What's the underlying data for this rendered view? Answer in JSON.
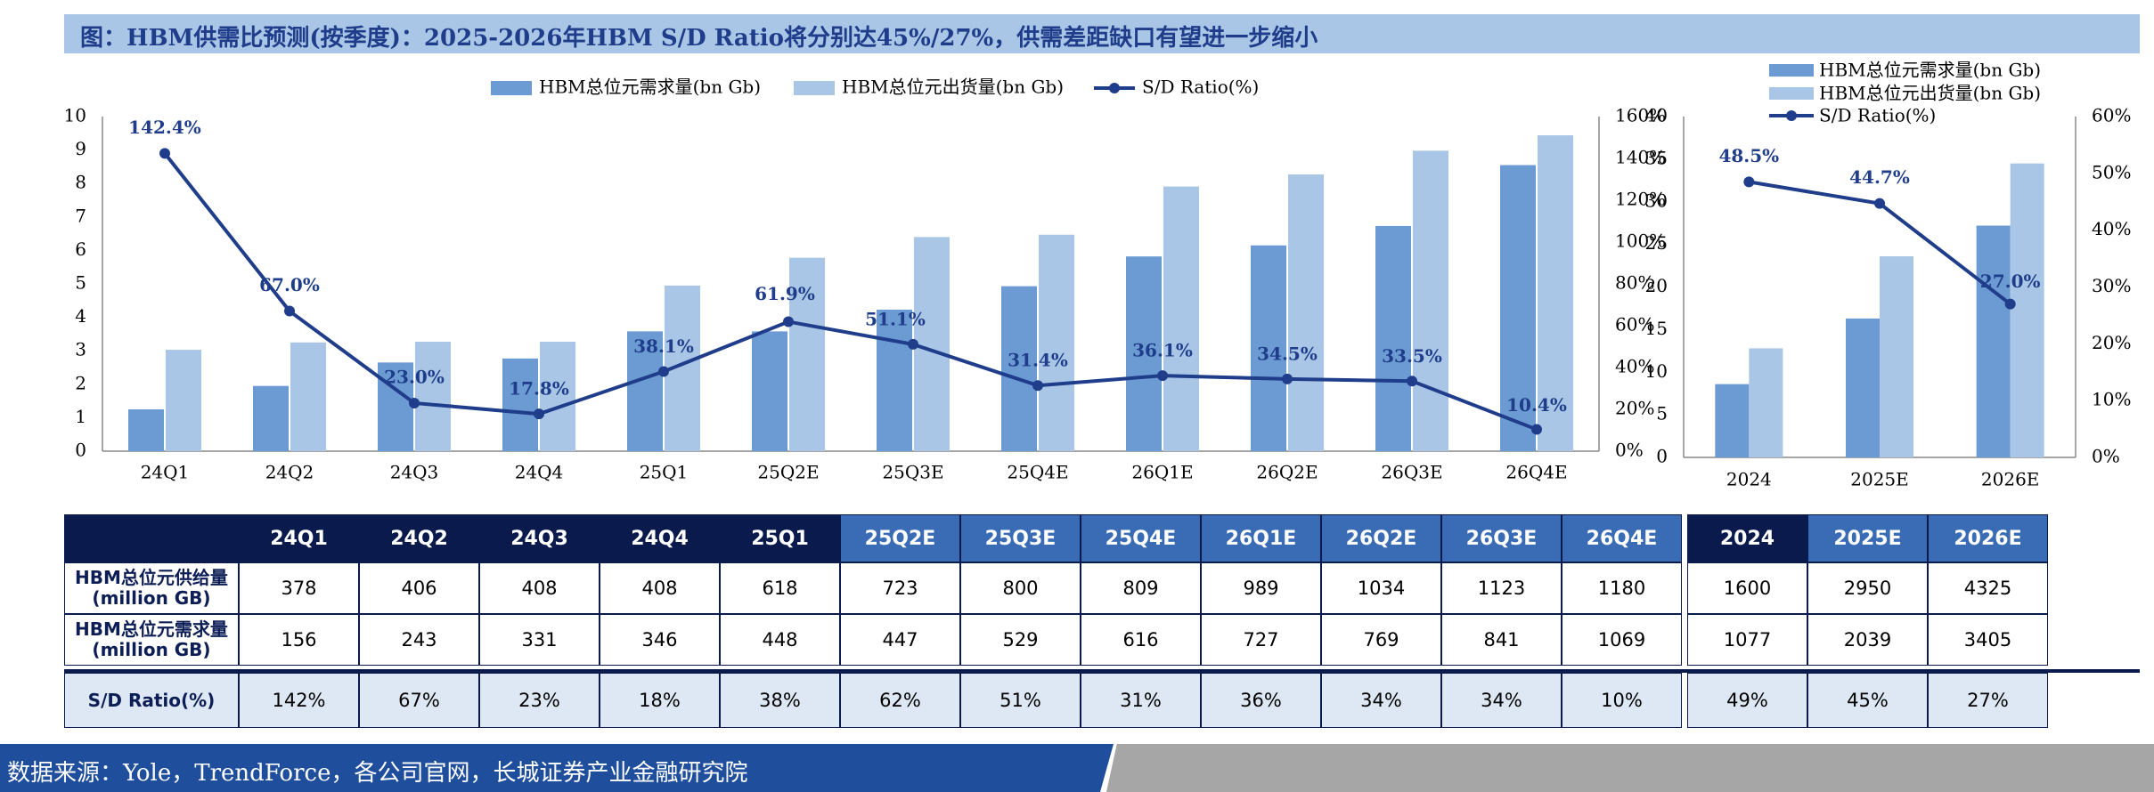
{
  "title": "图：HBM供需比预测(按季度)：2025-2026年HBM S/D Ratio将分别达45%/27%，供需差距缺口有望进一步缩小",
  "source": "数据来源：Yole，TrendForce，各公司官网，长城证券产业金融研究院",
  "colors": {
    "demand": "#6b9bd2",
    "supply": "#a9c6e6",
    "ratio": "#1f3d8a",
    "header_dark": "#0b1a4d",
    "header_mid": "#3a6cb5",
    "ratio_row": "#dde8f4"
  },
  "chart_data": [
    {
      "type": "bar",
      "categories": [
        "24Q1",
        "24Q2",
        "24Q3",
        "24Q4",
        "25Q1",
        "25Q2E",
        "25Q3E",
        "25Q4E",
        "26Q1E",
        "26Q2E",
        "26Q3E",
        "26Q4E"
      ],
      "series": [
        {
          "name": "HBM总位元需求量(bn Gb)",
          "kind": "bar",
          "axis": "left",
          "values": [
            1.25,
            1.95,
            2.65,
            2.77,
            3.58,
            3.58,
            4.23,
            4.93,
            5.82,
            6.15,
            6.73,
            8.55
          ]
        },
        {
          "name": "HBM总位元出货量(bn Gb)",
          "kind": "bar",
          "axis": "left",
          "values": [
            3.03,
            3.25,
            3.27,
            3.27,
            4.95,
            5.78,
            6.4,
            6.47,
            7.91,
            8.27,
            8.98,
            9.44
          ]
        },
        {
          "name": "S/D Ratio(%)",
          "kind": "line",
          "axis": "right",
          "values": [
            142.4,
            67.0,
            23.0,
            17.8,
            38.1,
            61.9,
            51.1,
            31.4,
            36.1,
            34.5,
            33.5,
            10.4
          ],
          "labels": [
            "142.4%",
            "67.0%",
            "23.0%",
            "17.8%",
            "38.1%",
            "61.9%",
            "51.1%",
            "31.4%",
            "36.1%",
            "34.5%",
            "33.5%",
            "10.4%"
          ]
        }
      ],
      "left_ticks": [
        "0",
        "1",
        "2",
        "3",
        "4",
        "5",
        "6",
        "7",
        "8",
        "9",
        "10"
      ],
      "right_ticks": [
        "0%",
        "20%",
        "40%",
        "60%",
        "80%",
        "100%",
        "120%",
        "140%",
        "160%"
      ],
      "ylim": [
        0,
        10
      ],
      "y2lim": [
        0,
        160
      ],
      "legend": "top"
    },
    {
      "type": "bar",
      "categories": [
        "2024",
        "2025E",
        "2026E"
      ],
      "series": [
        {
          "name": "HBM总位元需求量(bn Gb)",
          "kind": "bar",
          "axis": "left",
          "values": [
            8.6,
            16.3,
            27.2
          ]
        },
        {
          "name": "HBM总位元出货量(bn Gb)",
          "kind": "bar",
          "axis": "left",
          "values": [
            12.8,
            23.6,
            34.5
          ]
        },
        {
          "name": "S/D Ratio(%)",
          "kind": "line",
          "axis": "right",
          "values": [
            48.5,
            44.7,
            27.0
          ],
          "labels": [
            "48.5%",
            "44.7%",
            "27.0%"
          ]
        }
      ],
      "left_ticks": [
        "0",
        "5",
        "10",
        "15",
        "20",
        "25",
        "30",
        "35",
        "40"
      ],
      "right_ticks": [
        "0%",
        "10%",
        "20%",
        "30%",
        "40%",
        "50%",
        "60%"
      ],
      "ylim": [
        0,
        40
      ],
      "y2lim": [
        0,
        60
      ],
      "legend": "top"
    },
    {
      "type": "table",
      "headers": [
        "24Q1",
        "24Q2",
        "24Q3",
        "24Q4",
        "25Q1",
        "25Q2E",
        "25Q3E",
        "25Q4E",
        "26Q1E",
        "26Q2E",
        "26Q3E",
        "26Q4E",
        "2024",
        "2025E",
        "2026E"
      ],
      "header_shade": [
        "dark",
        "dark",
        "dark",
        "dark",
        "dark",
        "mid",
        "mid",
        "mid",
        "mid",
        "mid",
        "mid",
        "mid",
        "dark",
        "mid",
        "mid"
      ],
      "rows": [
        {
          "label": [
            "HBM总位元供给量",
            "(million GB)"
          ],
          "values": [
            "378",
            "406",
            "408",
            "408",
            "618",
            "723",
            "800",
            "809",
            "989",
            "1034",
            "1123",
            "1180",
            "1600",
            "2950",
            "4325"
          ]
        },
        {
          "label": [
            "HBM总位元需求量",
            "(million GB)"
          ],
          "values": [
            "156",
            "243",
            "331",
            "346",
            "448",
            "447",
            "529",
            "616",
            "727",
            "769",
            "841",
            "1069",
            "1077",
            "2039",
            "3405"
          ]
        },
        {
          "label": [
            "S/D Ratio(%)"
          ],
          "values": [
            "142%",
            "67%",
            "23%",
            "18%",
            "38%",
            "62%",
            "51%",
            "31%",
            "36%",
            "34%",
            "34%",
            "10%",
            "49%",
            "45%",
            "27%"
          ]
        }
      ]
    }
  ]
}
